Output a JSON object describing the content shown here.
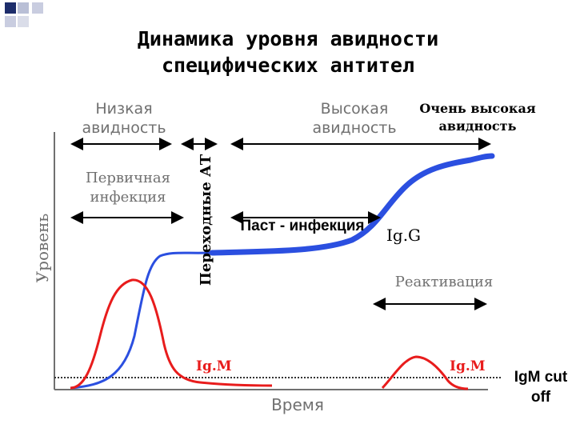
{
  "title": {
    "line1": "Динамика уровня авидности",
    "line2": "специфических антител"
  },
  "labels": {
    "low_avidity_1": "Низкая",
    "low_avidity_2": "авидность",
    "high_avidity_1": "Высокая",
    "high_avidity_2": "авидность",
    "very_high_1": "Очень высокая",
    "very_high_2": "авидность",
    "primary_1": "Первичная",
    "primary_2": "инфекция",
    "transitional": "Переходные АТ",
    "past_infection": "Паст - инфекция",
    "igg": "Ig.G",
    "reactivation": "Реактивация",
    "igm_left": "Ig.M",
    "igm_right": "Ig.M",
    "cutoff_1": "IgM cut",
    "cutoff_2": "off",
    "y_axis": "Уровень",
    "x_axis": "Время"
  },
  "colors": {
    "igg_curve": "#2b4fe0",
    "igm_curve": "#e81c1c",
    "axis": "#707070",
    "cutoff_line": "#333333",
    "corner_dark": "#1d2d6b",
    "corner_light": "#b9bfd6"
  }
}
